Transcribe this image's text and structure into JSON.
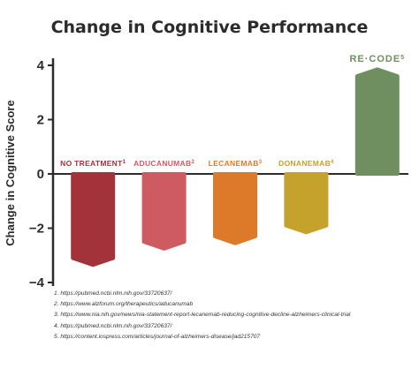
{
  "chart_data": {
    "type": "bar",
    "title": "Change in Cognitive Performance",
    "ylabel": "Change in Cognitive Score",
    "xlabel": "",
    "ylim": [
      -4,
      4
    ],
    "yticks": [
      4,
      2,
      0,
      -2,
      -4
    ],
    "ytick_labels": [
      "4",
      "2",
      "0",
      "−2",
      "−4"
    ],
    "grid": false,
    "categories": [
      {
        "label": "NO TREATMENT",
        "sup": "1"
      },
      {
        "label": "ADUCANUMAB",
        "sup": "2"
      },
      {
        "label": "LECANEMAB",
        "sup": "3"
      },
      {
        "label": "DONANEMAB",
        "sup": "4"
      },
      {
        "label": "RE·CODE",
        "sup": "5"
      }
    ],
    "values": [
      -3.3,
      -2.7,
      -2.5,
      -2.1,
      3.8
    ],
    "colors": [
      "#a3333b",
      "#cf5b62",
      "#dd7a2a",
      "#c4a22c",
      "#6f8f60"
    ],
    "label_colors": [
      "#a3333b",
      "#cf5b62",
      "#dd7a2a",
      "#c4a22c",
      "#6f8f60"
    ]
  },
  "references": [
    "1. https://pubmed.ncbi.nlm.nih.gov/33720637/",
    "2. https://www.alzforum.org/therapeutics/aducanumab",
    "3. https://www.nia.nih.gov/news/nia-statement-report-lecanemab-reducing-cognitive-decline-alzheimers-clinical-trial",
    "4. https://pubmed.ncbi.nlm.nih.gov/33720637/",
    "5. https://content.iospress.com/articles/journal-of-alzheimers-disease/jad215707"
  ]
}
